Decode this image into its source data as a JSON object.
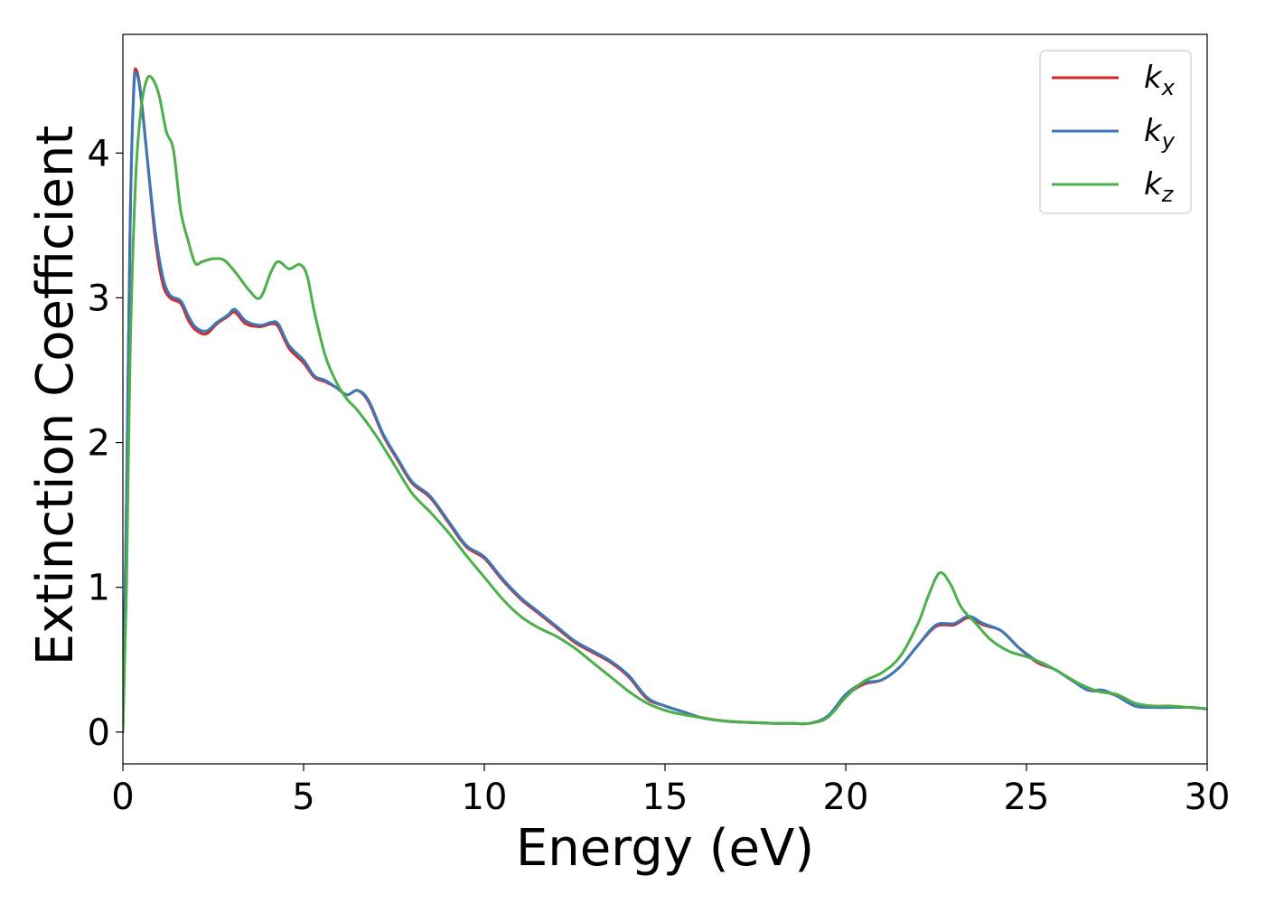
{
  "chart_data": {
    "type": "line",
    "xlabel": "Energy (eV)",
    "ylabel": "Extinction Coefficient",
    "xlim": [
      0,
      30
    ],
    "ylim": [
      -0.22,
      4.82
    ],
    "xticks": [
      0,
      5,
      10,
      15,
      20,
      25,
      30
    ],
    "yticks": [
      0,
      1,
      2,
      3,
      4
    ],
    "grid": false,
    "legend_position": "top-right",
    "series": [
      {
        "name": "k_x",
        "label_main": "k",
        "label_sub": "x",
        "color": "#d62728",
        "x": [
          0,
          0.1,
          0.2,
          0.3,
          0.38,
          0.5,
          0.7,
          0.9,
          1.1,
          1.3,
          1.6,
          1.8,
          2.0,
          2.3,
          2.6,
          2.9,
          3.1,
          3.4,
          3.8,
          4.1,
          4.3,
          4.6,
          5.0,
          5.3,
          5.6,
          5.9,
          6.2,
          6.5,
          6.8,
          7.2,
          7.6,
          8.0,
          8.5,
          9.0,
          9.5,
          10.0,
          10.5,
          11.0,
          11.5,
          12.0,
          12.5,
          13.0,
          13.5,
          14.0,
          14.5,
          15.0,
          15.5,
          16.0,
          16.5,
          17.0,
          17.5,
          18.0,
          18.5,
          19.0,
          19.5,
          20.0,
          20.5,
          21.0,
          21.5,
          22.0,
          22.5,
          23.0,
          23.4,
          23.8,
          24.3,
          24.8,
          25.3,
          25.8,
          26.3,
          26.7,
          27.1,
          27.5,
          28.0,
          28.5,
          29.0,
          29.5,
          30.0
        ],
        "y": [
          0.0,
          1.6,
          3.5,
          4.45,
          4.57,
          4.4,
          3.9,
          3.4,
          3.1,
          3.0,
          2.96,
          2.85,
          2.78,
          2.75,
          2.82,
          2.87,
          2.9,
          2.82,
          2.8,
          2.82,
          2.8,
          2.65,
          2.55,
          2.45,
          2.42,
          2.38,
          2.33,
          2.36,
          2.28,
          2.05,
          1.88,
          1.72,
          1.62,
          1.45,
          1.28,
          1.2,
          1.05,
          0.92,
          0.82,
          0.72,
          0.62,
          0.55,
          0.48,
          0.38,
          0.23,
          0.18,
          0.14,
          0.1,
          0.08,
          0.07,
          0.065,
          0.06,
          0.06,
          0.06,
          0.11,
          0.25,
          0.33,
          0.36,
          0.45,
          0.6,
          0.73,
          0.74,
          0.79,
          0.74,
          0.7,
          0.58,
          0.48,
          0.43,
          0.35,
          0.29,
          0.28,
          0.25,
          0.18,
          0.17,
          0.17,
          0.17,
          0.16
        ]
      },
      {
        "name": "k_y",
        "label_main": "k",
        "label_sub": "y",
        "color": "#3a78b8",
        "x": [
          0,
          0.1,
          0.2,
          0.3,
          0.38,
          0.5,
          0.7,
          0.9,
          1.1,
          1.3,
          1.6,
          1.8,
          2.0,
          2.3,
          2.6,
          2.9,
          3.1,
          3.4,
          3.8,
          4.1,
          4.3,
          4.6,
          5.0,
          5.3,
          5.6,
          5.9,
          6.2,
          6.5,
          6.8,
          7.2,
          7.6,
          8.0,
          8.5,
          9.0,
          9.5,
          10.0,
          10.5,
          11.0,
          11.5,
          12.0,
          12.5,
          13.0,
          13.5,
          14.0,
          14.5,
          15.0,
          15.5,
          16.0,
          16.5,
          17.0,
          17.5,
          18.0,
          18.5,
          19.0,
          19.5,
          20.0,
          20.5,
          21.0,
          21.5,
          22.0,
          22.5,
          23.0,
          23.4,
          23.8,
          24.3,
          24.8,
          25.3,
          25.8,
          26.3,
          26.7,
          27.1,
          27.5,
          28.0,
          28.5,
          29.0,
          29.5,
          30.0
        ],
        "y": [
          0.0,
          1.6,
          3.5,
          4.42,
          4.55,
          4.38,
          3.9,
          3.45,
          3.15,
          3.02,
          2.98,
          2.88,
          2.8,
          2.77,
          2.83,
          2.88,
          2.92,
          2.84,
          2.81,
          2.83,
          2.82,
          2.67,
          2.57,
          2.46,
          2.43,
          2.38,
          2.33,
          2.36,
          2.29,
          2.06,
          1.89,
          1.73,
          1.63,
          1.46,
          1.29,
          1.21,
          1.06,
          0.93,
          0.83,
          0.73,
          0.63,
          0.56,
          0.49,
          0.39,
          0.24,
          0.18,
          0.14,
          0.1,
          0.08,
          0.07,
          0.065,
          0.06,
          0.06,
          0.06,
          0.11,
          0.26,
          0.34,
          0.36,
          0.45,
          0.6,
          0.74,
          0.75,
          0.8,
          0.75,
          0.7,
          0.58,
          0.49,
          0.43,
          0.35,
          0.29,
          0.29,
          0.25,
          0.18,
          0.17,
          0.17,
          0.17,
          0.16
        ]
      },
      {
        "name": "k_z",
        "label_main": "k",
        "label_sub": "z",
        "color": "#4daf4a",
        "x": [
          0,
          0.1,
          0.2,
          0.35,
          0.5,
          0.65,
          0.8,
          1.0,
          1.2,
          1.4,
          1.6,
          1.8,
          2.0,
          2.2,
          2.5,
          2.8,
          3.1,
          3.5,
          3.8,
          4.1,
          4.3,
          4.6,
          4.9,
          5.1,
          5.3,
          5.6,
          5.9,
          6.2,
          6.5,
          7.0,
          7.5,
          8.0,
          8.5,
          9.0,
          9.5,
          10.0,
          10.5,
          11.0,
          11.5,
          12.0,
          12.5,
          13.0,
          13.5,
          14.0,
          14.5,
          15.0,
          15.5,
          16.0,
          16.5,
          17.0,
          17.5,
          18.0,
          18.5,
          19.0,
          19.5,
          20.0,
          20.5,
          21.0,
          21.5,
          22.0,
          22.3,
          22.6,
          22.9,
          23.2,
          23.6,
          24.0,
          24.5,
          25.0,
          25.5,
          26.0,
          26.5,
          27.0,
          27.5,
          28.0,
          28.5,
          29.0,
          29.5,
          30.0
        ],
        "y": [
          0.0,
          1.0,
          2.6,
          3.8,
          4.3,
          4.5,
          4.52,
          4.4,
          4.15,
          4.02,
          3.6,
          3.4,
          3.24,
          3.25,
          3.27,
          3.26,
          3.18,
          3.05,
          3.0,
          3.18,
          3.25,
          3.2,
          3.23,
          3.15,
          2.9,
          2.6,
          2.42,
          2.3,
          2.22,
          2.05,
          1.85,
          1.65,
          1.52,
          1.38,
          1.22,
          1.07,
          0.92,
          0.8,
          0.72,
          0.66,
          0.58,
          0.48,
          0.38,
          0.28,
          0.2,
          0.15,
          0.12,
          0.1,
          0.08,
          0.07,
          0.065,
          0.06,
          0.06,
          0.06,
          0.1,
          0.24,
          0.35,
          0.41,
          0.52,
          0.75,
          0.95,
          1.1,
          1.02,
          0.86,
          0.75,
          0.64,
          0.56,
          0.52,
          0.47,
          0.4,
          0.33,
          0.28,
          0.26,
          0.2,
          0.18,
          0.18,
          0.17,
          0.16
        ]
      }
    ]
  }
}
